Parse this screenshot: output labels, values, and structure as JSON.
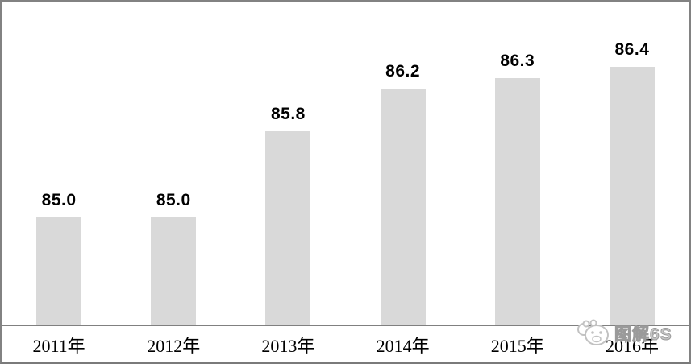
{
  "chart_data": {
    "type": "bar",
    "title": "",
    "xlabel": "",
    "ylabel": "",
    "categories": [
      "2011年",
      "2012年",
      "2013年",
      "2014年",
      "2015年",
      "2016年"
    ],
    "values": [
      85.0,
      85.0,
      85.8,
      86.2,
      86.3,
      86.4
    ],
    "value_labels": [
      "85.0",
      "85.0",
      "85.8",
      "86.2",
      "86.3",
      "86.4"
    ],
    "ylim": [
      84.0,
      87.0
    ],
    "grid": false,
    "legend": false,
    "bar_color": "#d9d9d9",
    "axis_line_color": "#808080",
    "label_color": "#000000"
  },
  "watermark": {
    "text": "图解6S",
    "icon": "cartoon-animal-face-icon",
    "color": "#c6c6c6"
  },
  "frame": {
    "border_color": "#828282"
  }
}
